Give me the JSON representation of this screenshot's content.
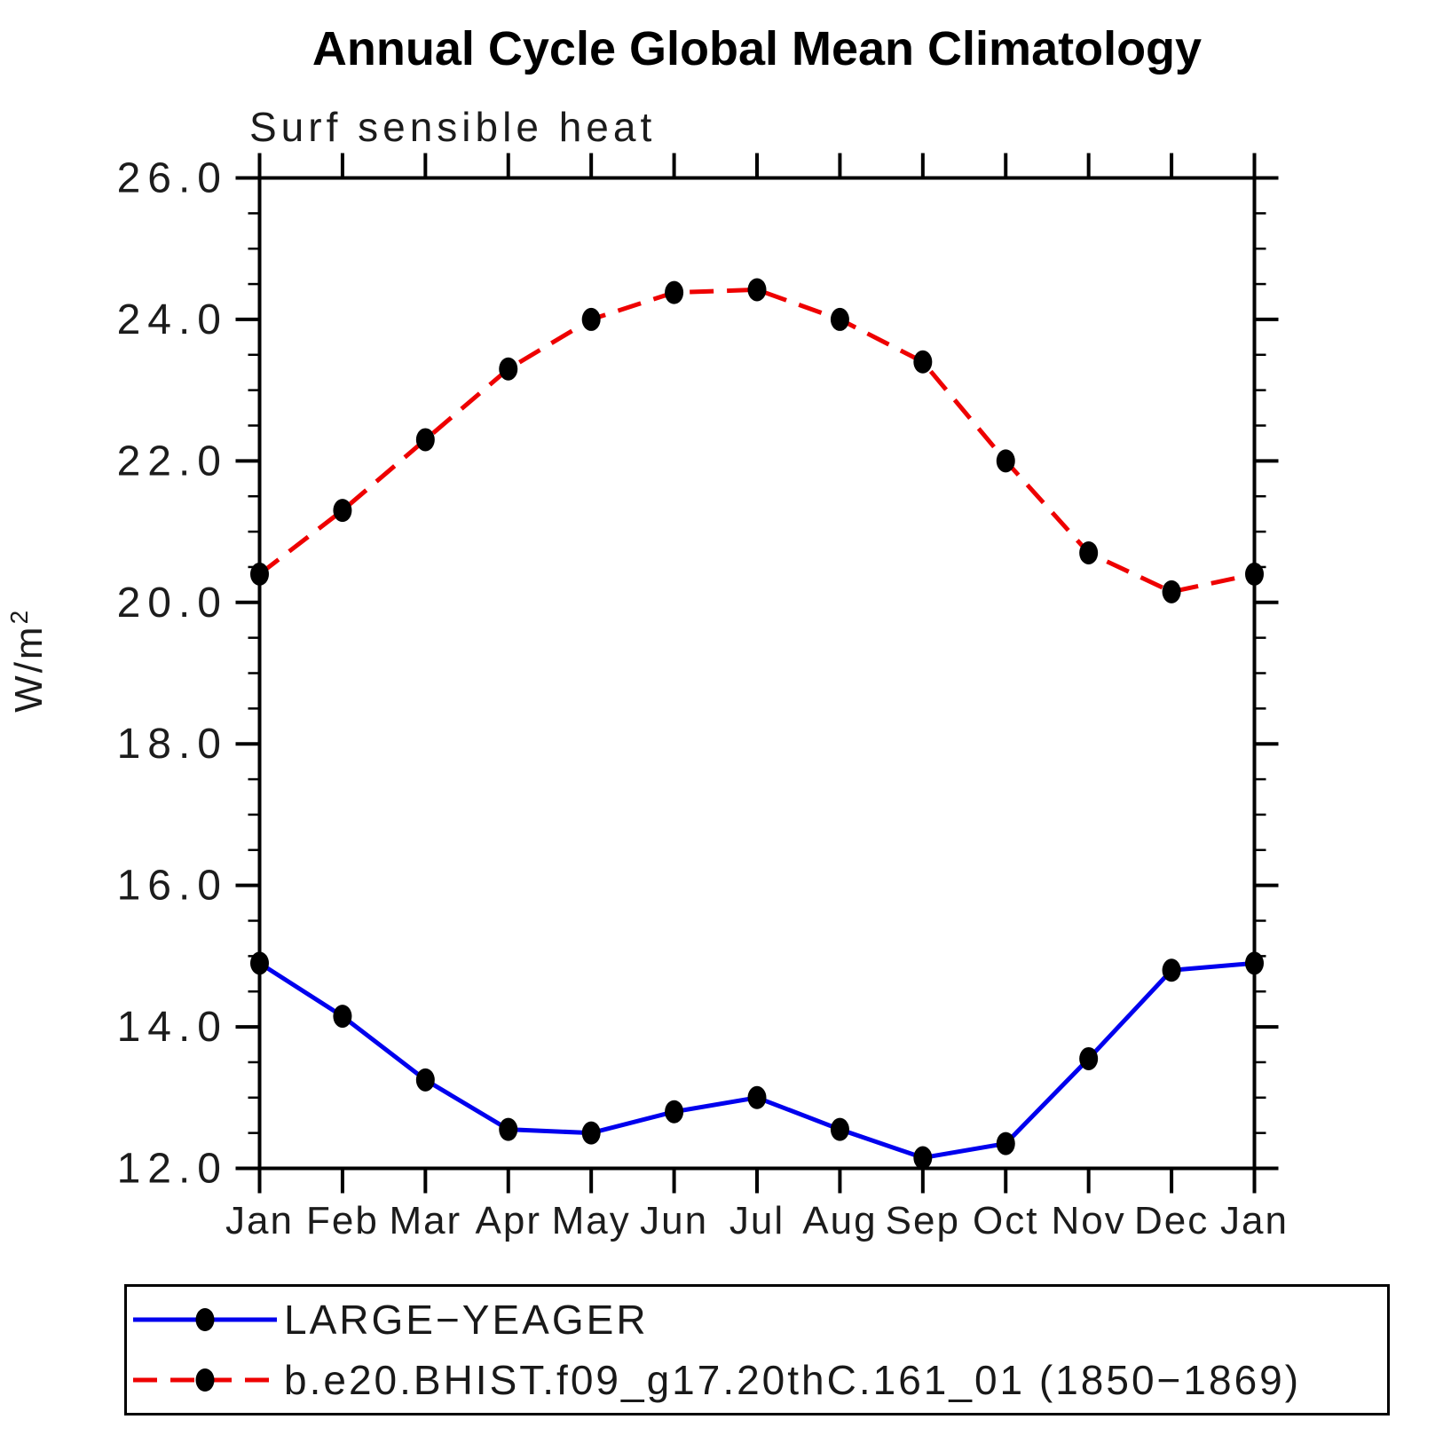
{
  "figure": {
    "title": "Annual Cycle Global Mean Climatology",
    "subtitle": "Surf sensible heat"
  },
  "axes": {
    "ylabel_base": "W/m",
    "ylabel_exponent": "2",
    "y_tick_labels": [
      "26.0",
      "24.0",
      "22.0",
      "20.0",
      "18.0",
      "16.0",
      "14.0",
      "12.0"
    ],
    "x_tick_labels": [
      "Jan",
      "Feb",
      "Mar",
      "Apr",
      "May",
      "Jun",
      "Jul",
      "Aug",
      "Sep",
      "Oct",
      "Nov",
      "Dec",
      "Jan"
    ]
  },
  "legend": {
    "entries": [
      {
        "label": "LARGE−YEAGER",
        "color": "#0000ee",
        "dash": "",
        "marker": "black-dot"
      },
      {
        "label": "b.e20.BHIST.f09_g17.20thC.161_01 (1850−1869)",
        "color": "#ee0000",
        "dash": "27 15",
        "marker": "black-dot"
      }
    ]
  },
  "chart_data": {
    "type": "line",
    "title": "Annual Cycle Global Mean Climatology",
    "subtitle": "Surf sensible heat",
    "ylabel": "W/m2",
    "x_categories": [
      "Jan",
      "Feb",
      "Mar",
      "Apr",
      "May",
      "Jun",
      "Jul",
      "Aug",
      "Sep",
      "Oct",
      "Nov",
      "Dec",
      "Jan"
    ],
    "ylim": [
      12.0,
      26.0
    ],
    "y_major_ticks": [
      12.0,
      14.0,
      16.0,
      18.0,
      20.0,
      22.0,
      24.0,
      26.0
    ],
    "y_minor_step": 0.5,
    "grid": false,
    "legend_position": "bottom",
    "marker_color": "#000000",
    "series": [
      {
        "name": "LARGE-YEAGER",
        "color": "#0000ee",
        "style": "solid",
        "marker": "filled-circle",
        "values": [
          14.9,
          14.15,
          13.25,
          12.55,
          12.5,
          12.8,
          13.0,
          12.55,
          12.15,
          12.35,
          13.55,
          14.8,
          14.9
        ]
      },
      {
        "name": "b.e20.BHIST.f09_g17.20thC.161_01 (1850-1869)",
        "color": "#ee0000",
        "style": "dashed",
        "marker": "filled-circle",
        "values": [
          20.4,
          21.3,
          22.3,
          23.3,
          24.0,
          24.38,
          24.42,
          24.0,
          23.4,
          22.0,
          20.7,
          20.15,
          20.4
        ]
      }
    ]
  }
}
